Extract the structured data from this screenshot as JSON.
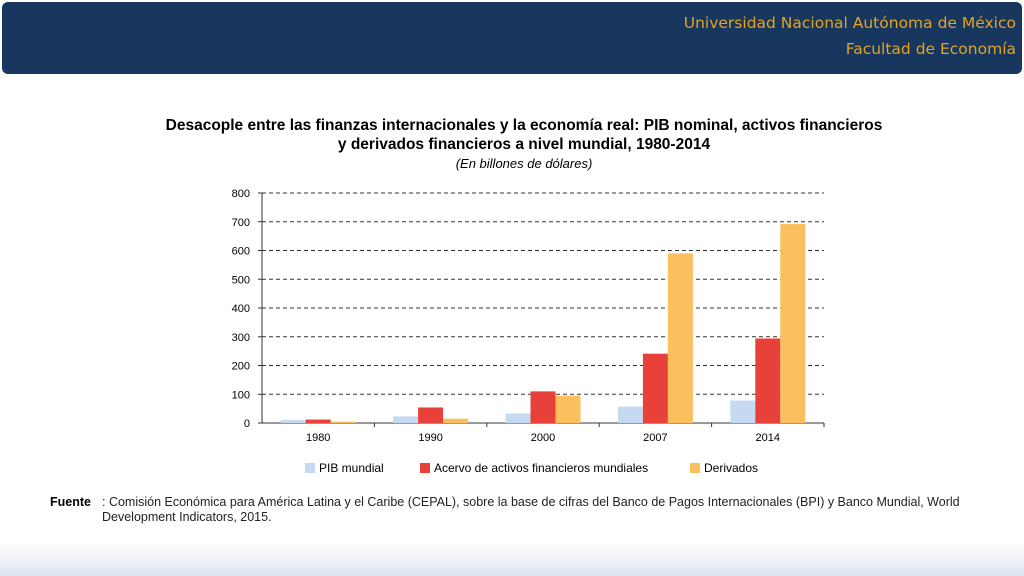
{
  "header": {
    "line1": "Universidad Nacional Autónoma de México",
    "line2": "Facultad de Economía"
  },
  "chart_data": {
    "type": "bar",
    "title_line1": "Desacople entre las finanzas internacionales y la economía real: PIB nominal, activos financieros",
    "title_line2": "y derivados financieros a nivel mundial, 1980-2014",
    "subtitle": "(En billones de dólares)",
    "categories": [
      "1980",
      "1990",
      "2000",
      "2007",
      "2014"
    ],
    "yticks": [
      "0",
      "100",
      "200",
      "300",
      "400",
      "500",
      "600",
      "700",
      "800"
    ],
    "ylim": [
      0,
      800
    ],
    "grid": true,
    "legend_position": "bottom",
    "series": [
      {
        "name": "PIB mundial",
        "color": "#c5d9f1",
        "values": [
          11,
          23,
          33,
          57,
          78
        ]
      },
      {
        "name": "Acervo de activos financieros mundiales",
        "color": "#e8413a",
        "values": [
          12,
          54,
          110,
          241,
          294
        ]
      },
      {
        "name": "Derivados",
        "color": "#fbbf5e",
        "values": [
          5,
          15,
          95,
          590,
          692
        ]
      }
    ]
  },
  "source": {
    "label": "Fuente",
    "text": ": Comisión Económica para América Latina y el Caribe (CEPAL), sobre la base de cifras del Banco de Pagos Internacionales (BPI) y Banco Mundial, World Development Indicators, 2015."
  }
}
